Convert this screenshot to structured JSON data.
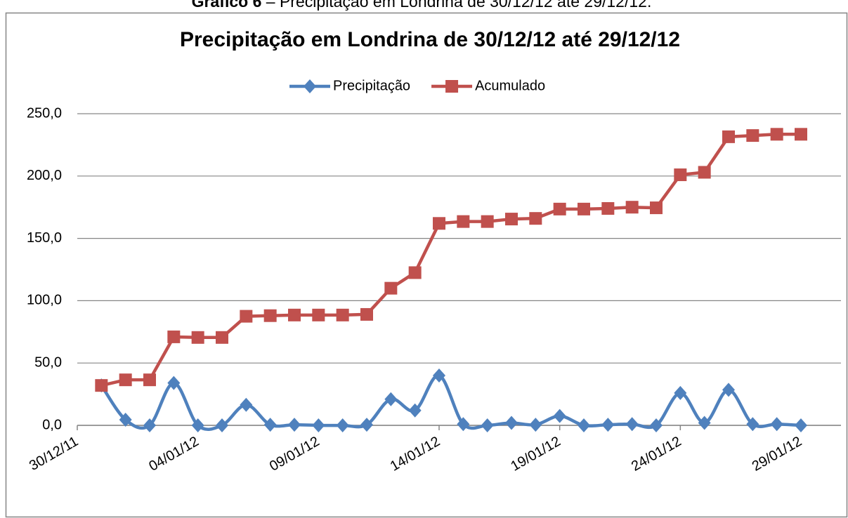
{
  "caption": {
    "label": "Gráfico 6",
    "text": "– Precipitação em Londrina de 30/12/12 até 29/12/12."
  },
  "chart_data": {
    "type": "line",
    "title": "Precipitação em Londrina de 30/12/12 até 29/12/12",
    "x": [
      "2011-12-31",
      "2012-01-01",
      "2012-01-02",
      "2012-01-03",
      "2012-01-04",
      "2012-01-05",
      "2012-01-06",
      "2012-01-07",
      "2012-01-08",
      "2012-01-09",
      "2012-01-10",
      "2012-01-11",
      "2012-01-12",
      "2012-01-13",
      "2012-01-14",
      "2012-01-15",
      "2012-01-16",
      "2012-01-17",
      "2012-01-18",
      "2012-01-19",
      "2012-01-20",
      "2012-01-21",
      "2012-01-22",
      "2012-01-23",
      "2012-01-24",
      "2012-01-25",
      "2012-01-26",
      "2012-01-27",
      "2012-01-28",
      "2012-01-29"
    ],
    "series": [
      {
        "name": "Precipitação",
        "color": "#4f81bd",
        "marker": "diamond",
        "smooth": true,
        "values": [
          32,
          4.5,
          0,
          34,
          0,
          0,
          16.5,
          0.5,
          0.5,
          0,
          0,
          0.5,
          21,
          12,
          40,
          1,
          0,
          2,
          0.5,
          7.5,
          0,
          0.5,
          1,
          0,
          26,
          2,
          28.5,
          1,
          1,
          0
        ]
      },
      {
        "name": "Acumulado",
        "color": "#c0504d",
        "marker": "square",
        "smooth": false,
        "values": [
          32,
          36.5,
          36.5,
          71,
          70.5,
          70.5,
          87.5,
          88,
          88.5,
          88.5,
          88.5,
          89,
          110,
          122.5,
          162,
          163.5,
          163.5,
          165.5,
          166,
          173.5,
          173.5,
          174,
          175,
          174.5,
          201,
          203,
          231.5,
          232.5,
          233.5,
          233.5
        ]
      }
    ],
    "xlim": [
      "2011-12-30",
      "2012-01-29"
    ],
    "xticks": [
      {
        "value": "2011-12-30",
        "label": "30/12/11"
      },
      {
        "value": "2012-01-04",
        "label": "04/01/12"
      },
      {
        "value": "2012-01-09",
        "label": "09/01/12"
      },
      {
        "value": "2012-01-14",
        "label": "14/01/12"
      },
      {
        "value": "2012-01-19",
        "label": "19/01/12"
      },
      {
        "value": "2012-01-24",
        "label": "24/01/12"
      },
      {
        "value": "2012-01-29",
        "label": "29/01/12"
      }
    ],
    "ylim": [
      0,
      250
    ],
    "yticks": [
      {
        "value": 0,
        "label": "0,0"
      },
      {
        "value": 50,
        "label": "50,0"
      },
      {
        "value": 100,
        "label": "100,0"
      },
      {
        "value": 150,
        "label": "150,0"
      },
      {
        "value": 200,
        "label": "200,0"
      },
      {
        "value": 250,
        "label": "250,0"
      }
    ],
    "grid": true,
    "legend": "top"
  }
}
